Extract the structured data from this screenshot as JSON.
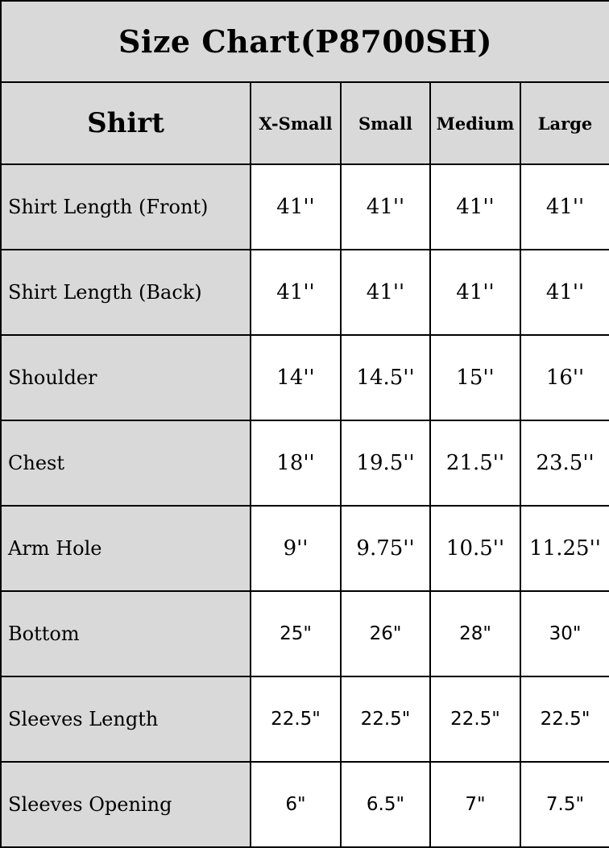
{
  "colors": {
    "header_background": "#d9d9d9",
    "value_cell_background": "#ffffff",
    "grid_border": "#000000",
    "text": "#000000"
  },
  "chart_data": {
    "type": "table",
    "title": "Size Chart(P8700SH)",
    "units": "inches",
    "header": {
      "corner": "Shirt",
      "sizes": [
        "X-Small",
        "Small",
        "Medium",
        "Large"
      ]
    },
    "rows": [
      {
        "label": "Shirt Length (Front)",
        "value_font": "serif",
        "values": [
          "41''",
          "41''",
          "41''",
          "41''"
        ]
      },
      {
        "label": "Shirt Length (Back)",
        "value_font": "serif",
        "values": [
          "41''",
          "41''",
          "41''",
          "41''"
        ]
      },
      {
        "label": "Shoulder",
        "value_font": "serif",
        "values": [
          "14''",
          "14.5''",
          "15''",
          "16''"
        ]
      },
      {
        "label": "Chest",
        "value_font": "serif",
        "values": [
          "18''",
          "19.5''",
          "21.5''",
          "23.5''"
        ]
      },
      {
        "label": "Arm Hole",
        "value_font": "serif",
        "values": [
          "9''",
          "9.75''",
          "10.5''",
          "11.25''"
        ]
      },
      {
        "label": "Bottom",
        "value_font": "sans",
        "values": [
          "25\"",
          "26\"",
          "28\"",
          "30\""
        ]
      },
      {
        "label": "Sleeves Length",
        "value_font": "sans",
        "values": [
          "22.5\"",
          "22.5\"",
          "22.5\"",
          "22.5\""
        ]
      },
      {
        "label": "Sleeves Opening",
        "value_font": "sans",
        "values": [
          "6\"",
          "6.5\"",
          "7\"",
          "7.5\""
        ]
      }
    ]
  }
}
